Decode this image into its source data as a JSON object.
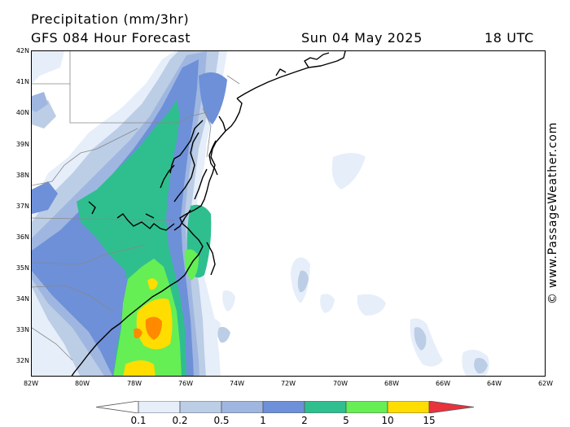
{
  "header": {
    "title": "Precipitation (mm/3hr)",
    "subtitle": "GFS 084 Hour Forecast",
    "date": "Sun 04 May 2025",
    "time": "18 UTC"
  },
  "map": {
    "latitude_labels": [
      "42N",
      "41N",
      "40N",
      "39N",
      "38N",
      "37N",
      "36N",
      "35N",
      "34N",
      "33N",
      "32N"
    ],
    "longitude_labels": [
      "82W",
      "80W",
      "78W",
      "76W",
      "74W",
      "72W",
      "70W",
      "68W",
      "66W",
      "64W",
      "62W"
    ]
  },
  "watermark": "© www.PassageWeather.com",
  "legend": {
    "labels": [
      "0.1",
      "0.2",
      "0.5",
      "1",
      "2",
      "5",
      "10",
      "15"
    ],
    "colors": [
      "#e6eefa",
      "#bccde6",
      "#9fb6e0",
      "#6d90d8",
      "#2fbf8f",
      "#66ee55",
      "#ffdd00",
      "#ff8a00",
      "#e8323c"
    ],
    "low_arrow_color": "#ffffff",
    "high_arrow_color": "#e8323c"
  }
}
